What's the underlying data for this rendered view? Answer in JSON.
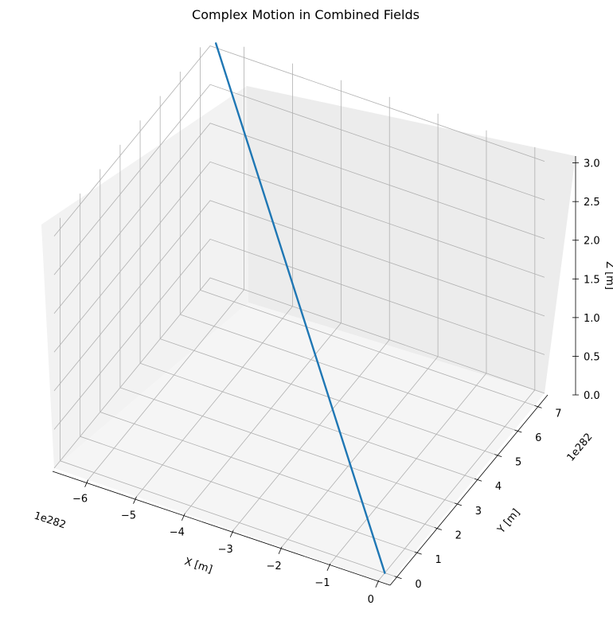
{
  "chart_data": {
    "type": "line",
    "projection": "3d",
    "title": "Complex Motion in Combined Fields",
    "xlabel": "X [m]",
    "ylabel": "Y [m]",
    "zlabel": "Z [m]",
    "x_offset_text": "1e282",
    "y_offset_text": "1e282",
    "x_ticks": [
      "0",
      "−1",
      "−2",
      "−3",
      "−4",
      "−5",
      "−6"
    ],
    "y_ticks": [
      "0",
      "1",
      "2",
      "3",
      "4",
      "5",
      "6",
      "7"
    ],
    "z_ticks": [
      "0.0",
      "0.5",
      "1.0",
      "1.5",
      "2.0",
      "2.5",
      "3.0"
    ],
    "xlim": [
      -6.7,
      0.2
    ],
    "ylim": [
      -0.3,
      7.5
    ],
    "zlim": [
      0.0,
      3.14
    ],
    "grid": true,
    "series": [
      {
        "color": "#1f77b4",
        "x": [
          0.0,
          -6.5
        ],
        "y": [
          0.0,
          7.3
        ],
        "z": [
          0.0,
          3.14
        ]
      }
    ]
  }
}
